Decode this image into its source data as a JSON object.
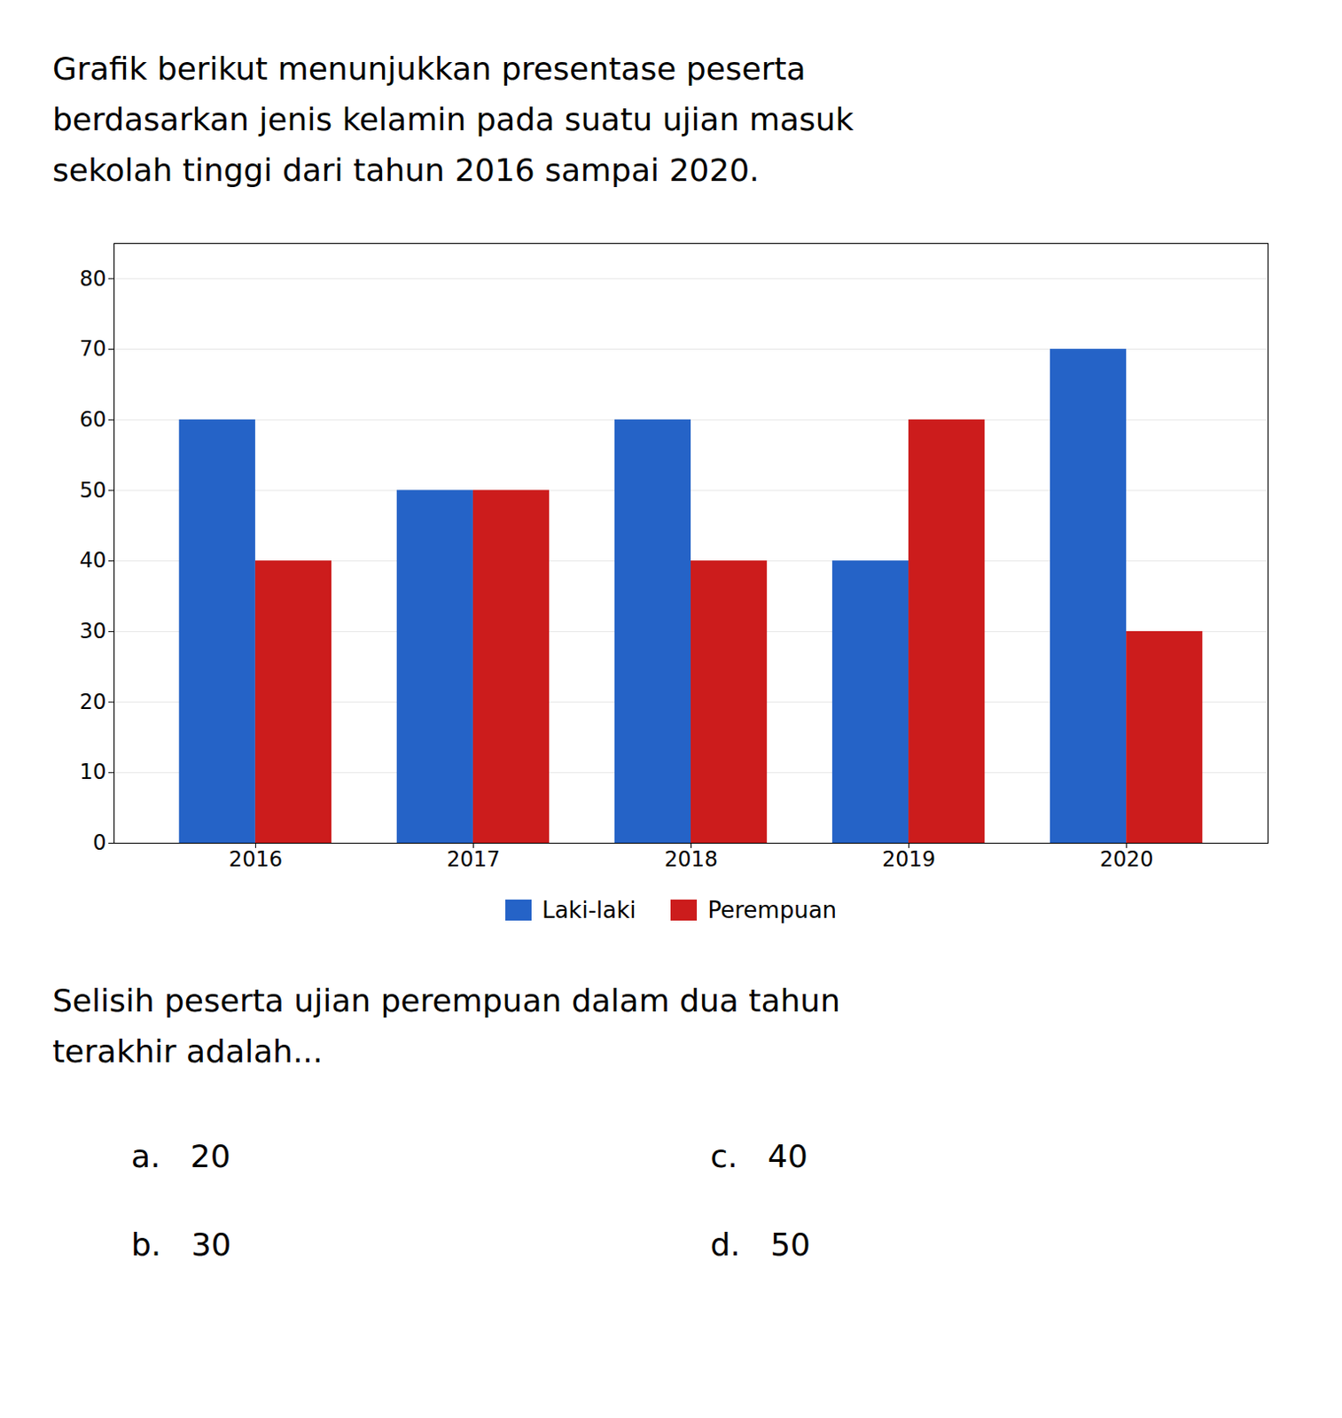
{
  "chart_data": {
    "type": "bar",
    "title": [
      "Grafik berikut menunjukkan presentase peserta",
      "berdasarkan jenis kelamin pada suatu ujian masuk",
      "sekolah tinggi dari tahun 2016 sampai 2020."
    ],
    "categories": [
      "2016",
      "2017",
      "2018",
      "2019",
      "2020"
    ],
    "series": [
      {
        "name": "Laki-laki",
        "color": "#2563c7",
        "values": [
          60,
          50,
          60,
          40,
          70
        ]
      },
      {
        "name": "Perempuan",
        "color": "#cc1c1c",
        "values": [
          40,
          50,
          40,
          60,
          30
        ]
      }
    ],
    "ylim": [
      0,
      85
    ],
    "yticks": [
      0,
      10,
      20,
      30,
      40,
      50,
      60,
      70,
      80
    ],
    "grid": true,
    "legend": "bottom",
    "question": [
      "Selisih peserta ujian perempuan dalam dua tahun",
      "terakhir adalah..."
    ],
    "choices": [
      "a.   20",
      "b.   30",
      "c.   40",
      "d.   50"
    ]
  }
}
